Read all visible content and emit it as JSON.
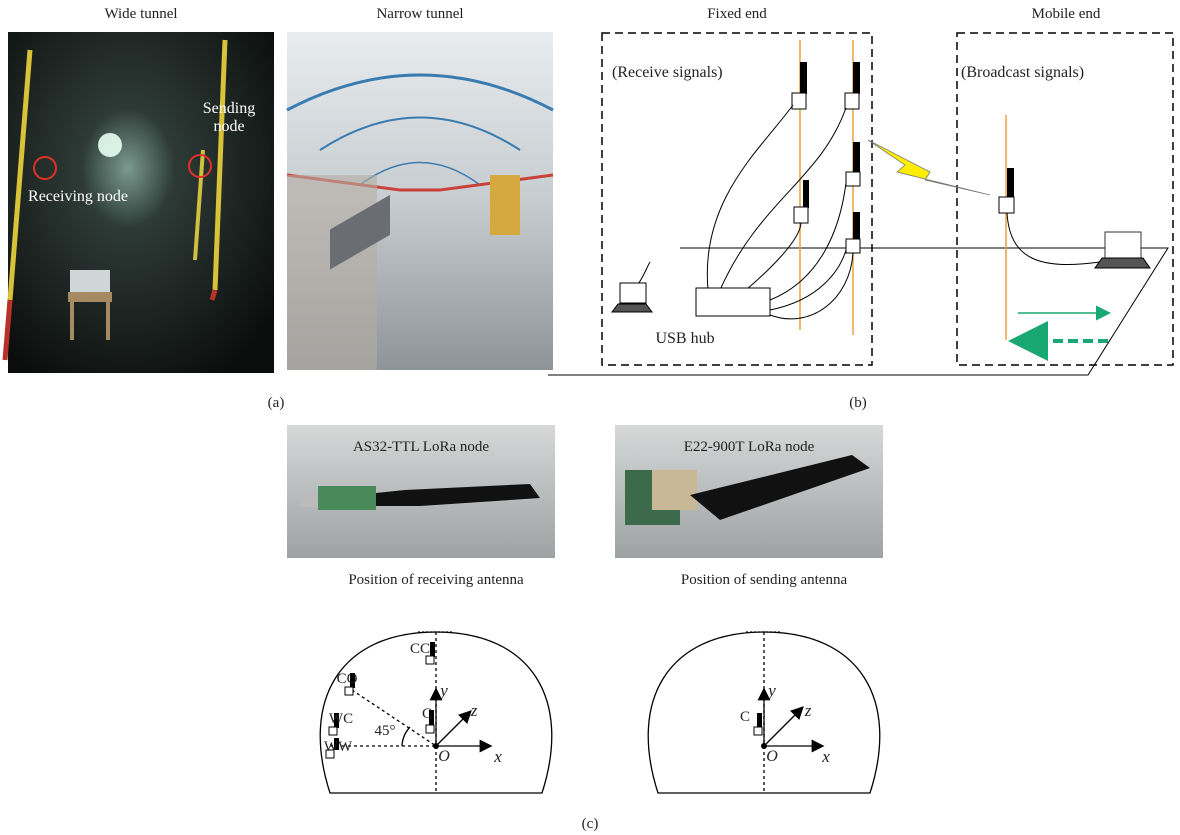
{
  "panel_a": {
    "wide_tunnel": {
      "title": "Wide tunnel",
      "sending_label": "Sending node",
      "receiving_label": "Receiving node"
    },
    "narrow_tunnel": {
      "title": "Narrow tunnel"
    },
    "caption": "(a)"
  },
  "panel_b": {
    "fixed_end": {
      "title": "Fixed end",
      "note": "(Receive signals)",
      "hub": "USB hub"
    },
    "mobile_end": {
      "title": "Mobile end",
      "note": "(Broadcast signals)"
    },
    "caption": "(b)"
  },
  "panel_c": {
    "nodes": [
      {
        "label": "AS32-TTL LoRa node"
      },
      {
        "label": "E22-900T LoRa node"
      }
    ],
    "receiving": {
      "title": "Position of receiving antenna",
      "positions": [
        "CC",
        "CO",
        "WC",
        "WW",
        "C"
      ],
      "angle": "45°",
      "axes": [
        "x",
        "y",
        "z"
      ],
      "origin": "O"
    },
    "sending": {
      "title": "Position of sending antenna",
      "positions": [
        "C"
      ],
      "axes": [
        "x",
        "y",
        "z"
      ],
      "origin": "O"
    },
    "caption": "(c)"
  }
}
